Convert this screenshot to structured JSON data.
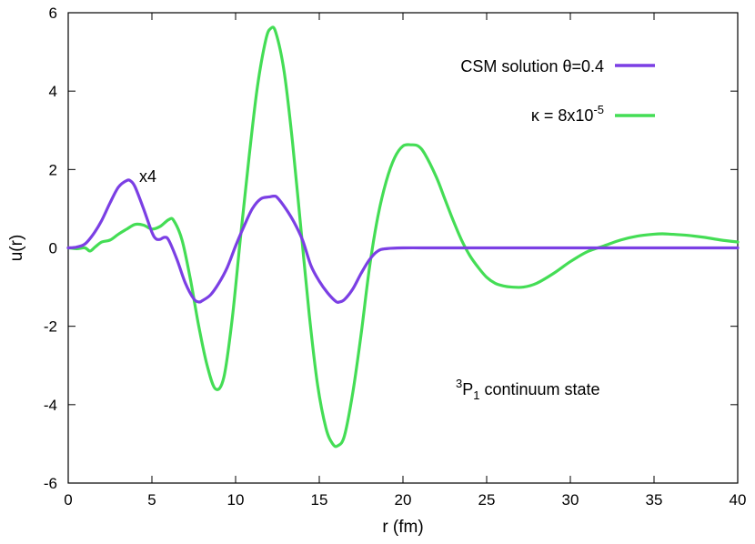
{
  "chart_data": {
    "type": "line",
    "title": "",
    "xlabel": "r (fm)",
    "ylabel": "u(r)",
    "xlim": [
      0,
      40
    ],
    "ylim": [
      -6,
      6
    ],
    "xticks": [
      "0",
      "5",
      "10",
      "15",
      "20",
      "25",
      "30",
      "35",
      "40"
    ],
    "yticks": [
      "-6",
      "-4",
      "-2",
      "0",
      "2",
      "4",
      "6"
    ],
    "grid": false,
    "legend_position": "top-right",
    "series": [
      {
        "name": "CSM solution θ=0.4",
        "color": "#7b3fe4",
        "x": [
          0,
          0.5,
          1,
          1.5,
          2,
          2.5,
          3,
          3.5,
          3.75,
          4,
          4.5,
          5,
          5.25,
          5.5,
          5.75,
          6,
          6.5,
          7,
          7.5,
          7.8,
          8,
          8.5,
          9,
          9.5,
          10,
          10.5,
          11,
          11.5,
          12,
          12.3,
          12.5,
          13,
          13.5,
          14,
          14.5,
          15,
          15.5,
          16,
          16.2,
          16.5,
          17,
          17.5,
          18,
          18.5,
          19,
          20,
          22,
          25,
          30,
          35,
          40
        ],
        "y": [
          0,
          0.02,
          0.1,
          0.35,
          0.7,
          1.15,
          1.55,
          1.72,
          1.7,
          1.55,
          1.0,
          0.4,
          0.23,
          0.22,
          0.27,
          0.2,
          -0.3,
          -0.9,
          -1.3,
          -1.38,
          -1.35,
          -1.2,
          -0.9,
          -0.5,
          0.05,
          0.55,
          1.0,
          1.25,
          1.3,
          1.32,
          1.28,
          1.0,
          0.65,
          0.2,
          -0.45,
          -0.85,
          -1.15,
          -1.37,
          -1.38,
          -1.32,
          -1.05,
          -0.65,
          -0.3,
          -0.08,
          -0.02,
          0,
          0,
          0,
          0,
          0,
          0
        ]
      },
      {
        "name": "κ = 8x10⁻⁵",
        "color": "#44dd55",
        "x": [
          0,
          0.5,
          1,
          1.3,
          1.6,
          2,
          2.5,
          3,
          3.5,
          4,
          4.5,
          5,
          5.5,
          6,
          6.3,
          6.8,
          7.3,
          7.8,
          8.3,
          8.8,
          9.3,
          9.8,
          10.3,
          10.8,
          11.3,
          11.8,
          12.1,
          12.4,
          12.9,
          13.4,
          13.9,
          14.4,
          14.9,
          15.4,
          15.8,
          16.1,
          16.5,
          17,
          17.5,
          18,
          18.5,
          19,
          19.5,
          20,
          20.5,
          20.9,
          21.3,
          22,
          22.5,
          23,
          23.5,
          24,
          24.5,
          25,
          25.5,
          26,
          26.5,
          27.2,
          28,
          29,
          30,
          31,
          32,
          33,
          34,
          35,
          35.5,
          36,
          37,
          38,
          39,
          40
        ],
        "y": [
          0,
          -0.02,
          0,
          -0.08,
          0.02,
          0.15,
          0.2,
          0.35,
          0.48,
          0.6,
          0.58,
          0.48,
          0.55,
          0.72,
          0.7,
          0.2,
          -0.8,
          -2.0,
          -3.0,
          -3.6,
          -3.3,
          -1.8,
          0.3,
          2.3,
          4.1,
          5.3,
          5.6,
          5.5,
          4.5,
          2.7,
          0.5,
          -1.7,
          -3.5,
          -4.6,
          -5.0,
          -5.05,
          -4.8,
          -3.7,
          -2.2,
          -0.5,
          0.8,
          1.7,
          2.3,
          2.6,
          2.63,
          2.6,
          2.4,
          1.8,
          1.25,
          0.7,
          0.2,
          -0.2,
          -0.5,
          -0.75,
          -0.9,
          -0.97,
          -1.0,
          -1.0,
          -0.9,
          -0.65,
          -0.35,
          -0.1,
          0.05,
          0.2,
          0.3,
          0.35,
          0.36,
          0.35,
          0.32,
          0.27,
          0.2,
          0.15
        ]
      }
    ],
    "annotations": {
      "scale_note": "x4",
      "state_label_sup": "3",
      "state_label_main": "P",
      "state_label_sub": "1",
      "state_label_rest": " continuum state"
    },
    "legend_labels": {
      "csm": "CSM solution θ=0.4",
      "kappa_prefix": "κ = 8x10",
      "kappa_exp": "-5"
    }
  }
}
